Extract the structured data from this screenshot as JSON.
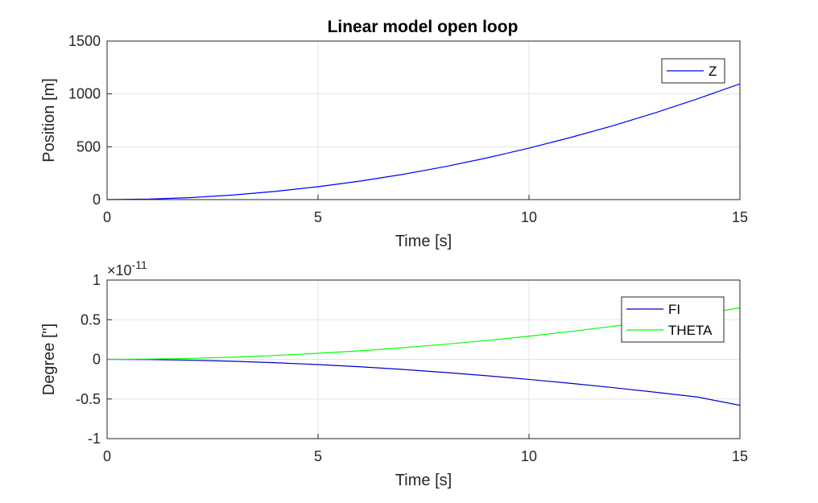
{
  "figure_title": "Linear model open loop",
  "chart_data": [
    {
      "type": "line",
      "xlabel": "Time [s]",
      "ylabel": "Position [m]",
      "xlim": [
        0,
        15
      ],
      "ylim": [
        0,
        1500
      ],
      "xticks": [
        "0",
        "5",
        "10",
        "15"
      ],
      "yticks": [
        "0",
        "500",
        "1000",
        "1500"
      ],
      "grid": true,
      "legend": "top-right",
      "exponent_label": "",
      "series": [
        {
          "name": "Z",
          "color": "#0000ff",
          "x": [
            0,
            1,
            2,
            3,
            4,
            5,
            6,
            7,
            8,
            9,
            10,
            11,
            12,
            13,
            14,
            15
          ],
          "y": [
            0,
            5,
            19,
            44,
            78,
            122,
            175,
            238,
            311,
            394,
            487,
            589,
            700,
            822,
            954,
            1095
          ]
        }
      ]
    },
    {
      "type": "line",
      "xlabel": "Time [s]",
      "ylabel": "Degree [\"]",
      "xlim": [
        0,
        15
      ],
      "ylim": [
        -1,
        1
      ],
      "xticks": [
        "0",
        "5",
        "10",
        "15"
      ],
      "yticks": [
        "-1",
        "-0.5",
        "0",
        "0.5",
        "1"
      ],
      "grid": true,
      "legend": "top-right",
      "exponent_label": "×10",
      "exponent_power": "-11",
      "series": [
        {
          "name": "FI",
          "color": "#0000cd",
          "x": [
            0,
            1,
            2,
            3,
            4,
            5,
            6,
            7,
            8,
            9,
            10,
            11,
            12,
            13,
            14,
            15
          ],
          "y": [
            0,
            -0.003,
            -0.011,
            -0.024,
            -0.043,
            -0.066,
            -0.094,
            -0.127,
            -0.165,
            -0.207,
            -0.253,
            -0.303,
            -0.357,
            -0.415,
            -0.476,
            -0.58
          ]
        },
        {
          "name": "THETA",
          "color": "#00ff00",
          "x": [
            0,
            1,
            2,
            3,
            4,
            5,
            6,
            7,
            8,
            9,
            10,
            11,
            12,
            13,
            14,
            15
          ],
          "y": [
            0,
            0.003,
            0.012,
            0.028,
            0.049,
            0.076,
            0.108,
            0.146,
            0.19,
            0.238,
            0.292,
            0.352,
            0.417,
            0.487,
            0.562,
            0.65
          ]
        }
      ]
    }
  ]
}
